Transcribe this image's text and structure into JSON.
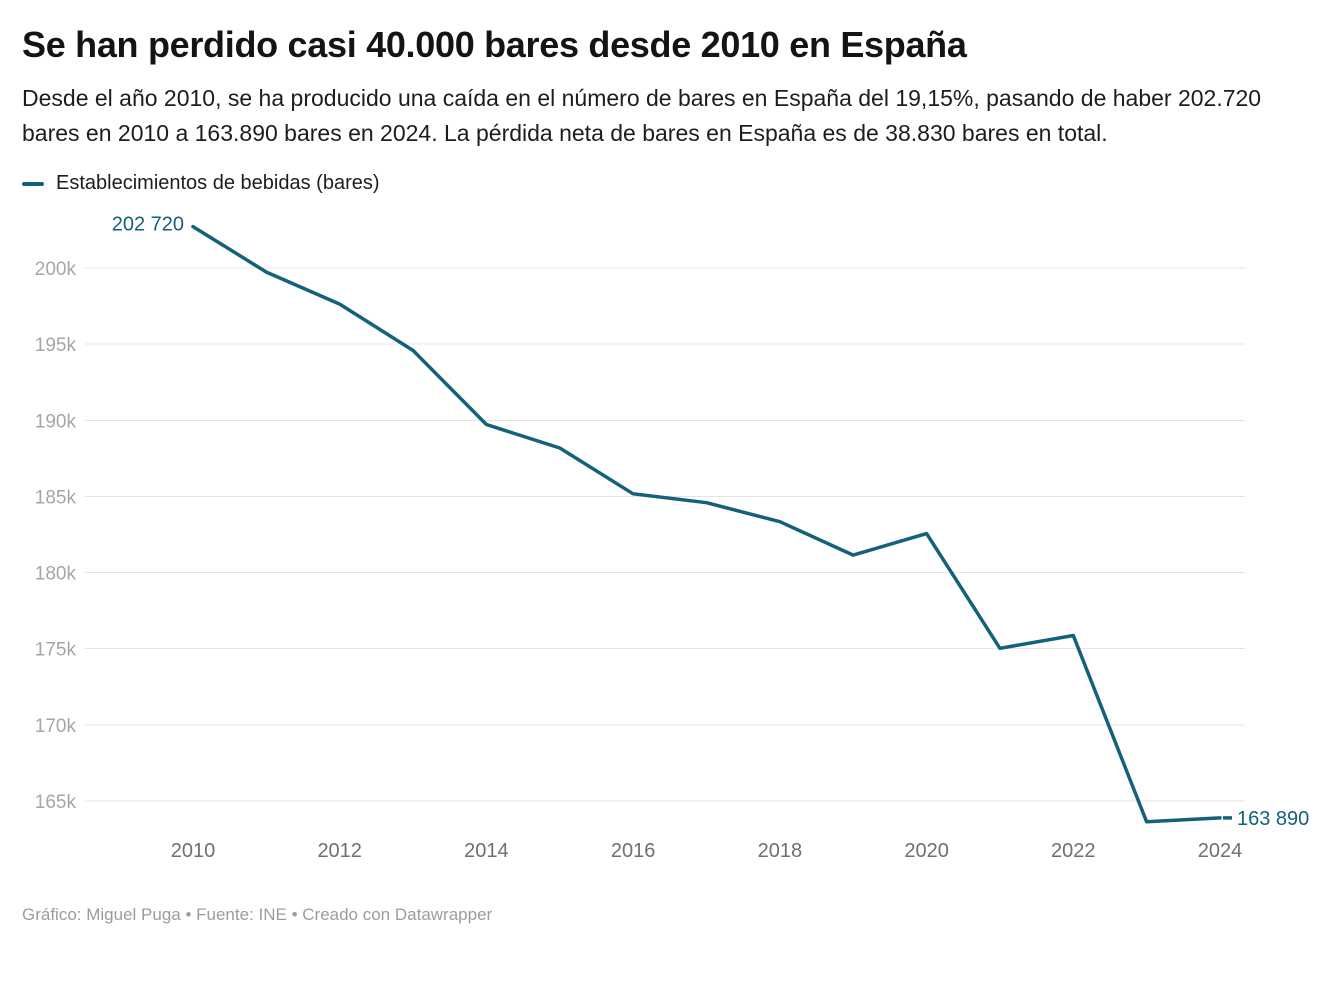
{
  "header": {
    "title": "Se han perdido casi 40.000 bares desde 2010 en España",
    "description": "Desde el año 2010, se ha producido una caída en el número de bares en España del 19,15%, pasando de haber 202.720 bares en 2010 a 163.890 bares en 2024. La pérdida neta de bares en España es de 38.830 bares en total."
  },
  "legend": {
    "label": "Establecimientos de bebidas (bares)",
    "color": "#15607a"
  },
  "chart_data": {
    "type": "line",
    "title": "Se han perdido casi 40.000 bares desde 2010 en España",
    "xlabel": "",
    "ylabel": "",
    "x_range": [
      2010,
      2024
    ],
    "ylim": [
      162800,
      203600
    ],
    "grid": "horizontal",
    "legend_position": "top-left",
    "series": [
      {
        "name": "Establecimientos de bebidas (bares)",
        "color": "#15607a",
        "x": [
          2010,
          2011,
          2012,
          2013,
          2014,
          2015,
          2016,
          2017,
          2018,
          2019,
          2020,
          2021,
          2022,
          2023,
          2024
        ],
        "values": [
          202720,
          199730,
          197630,
          194580,
          189720,
          188180,
          185170,
          184590,
          183340,
          181150,
          182560,
          175030,
          175870,
          163640,
          163890
        ]
      }
    ],
    "y_ticks": [
      {
        "value": 165000,
        "label": "165k"
      },
      {
        "value": 170000,
        "label": "170k"
      },
      {
        "value": 175000,
        "label": "175k"
      },
      {
        "value": 180000,
        "label": "180k"
      },
      {
        "value": 185000,
        "label": "185k"
      },
      {
        "value": 190000,
        "label": "190k"
      },
      {
        "value": 195000,
        "label": "195k"
      },
      {
        "value": 200000,
        "label": "200k"
      }
    ],
    "x_ticks": [
      {
        "value": 2010,
        "label": "2010"
      },
      {
        "value": 2012,
        "label": "2012"
      },
      {
        "value": 2014,
        "label": "2014"
      },
      {
        "value": 2016,
        "label": "2016"
      },
      {
        "value": 2018,
        "label": "2018"
      },
      {
        "value": 2020,
        "label": "2020"
      },
      {
        "value": 2022,
        "label": "2022"
      },
      {
        "value": 2024,
        "label": "2024"
      }
    ],
    "point_labels": {
      "first": "202 720",
      "last": "163 890"
    }
  },
  "footer": {
    "text": "Gráfico: Miguel Puga • Fuente: INE • Creado con Datawrapper"
  }
}
